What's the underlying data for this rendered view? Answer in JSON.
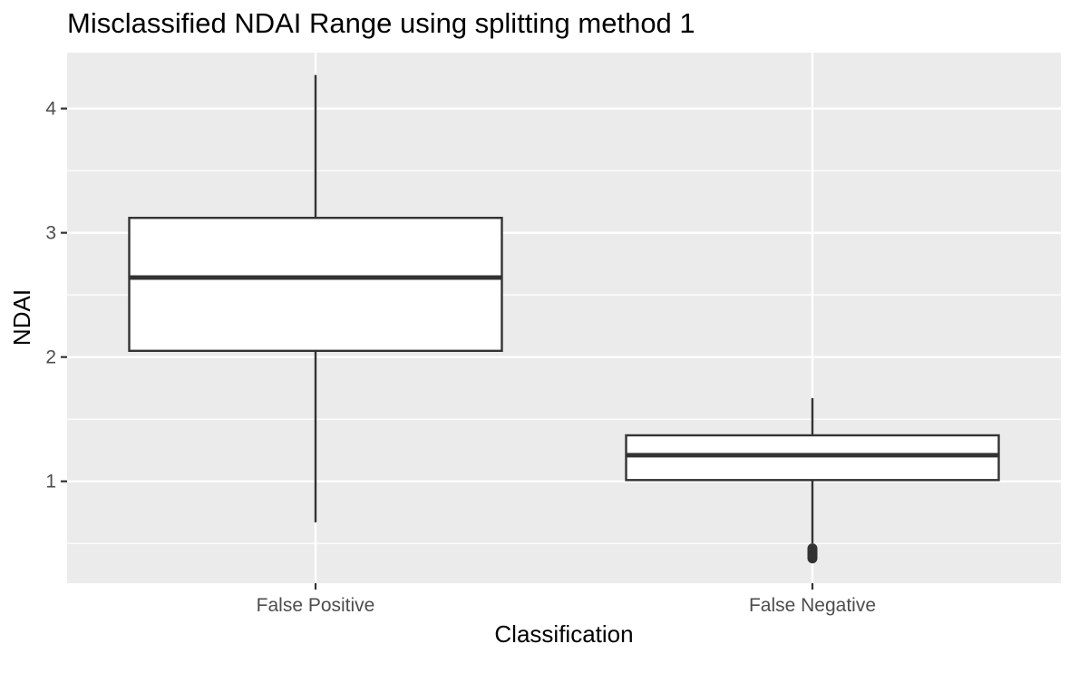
{
  "chart_data": {
    "type": "boxplot",
    "title": "Misclassified NDAI Range using splitting method 1",
    "xlabel": "Classification",
    "ylabel": "NDAI",
    "categories": [
      "False Positive",
      "False Negative"
    ],
    "yticks": [
      1,
      2,
      3,
      4
    ],
    "ylim": [
      0.18,
      4.45
    ],
    "boxes": [
      {
        "category": "False Positive",
        "whisker_low": 0.67,
        "q1": 2.05,
        "median": 2.64,
        "q3": 3.12,
        "whisker_high": 4.27,
        "outliers": []
      },
      {
        "category": "False Negative",
        "whisker_low": 0.5,
        "q1": 1.01,
        "median": 1.21,
        "q3": 1.37,
        "whisker_high": 1.67,
        "outliers": [
          0.38,
          0.39,
          0.4,
          0.41,
          0.42,
          0.43,
          0.44,
          0.45,
          0.46
        ]
      }
    ],
    "grid": true,
    "legend": "none",
    "colors": {
      "panel": "#ebebeb",
      "grid": "#ffffff",
      "box_fill": "#ffffff",
      "box_stroke": "#333333"
    }
  }
}
